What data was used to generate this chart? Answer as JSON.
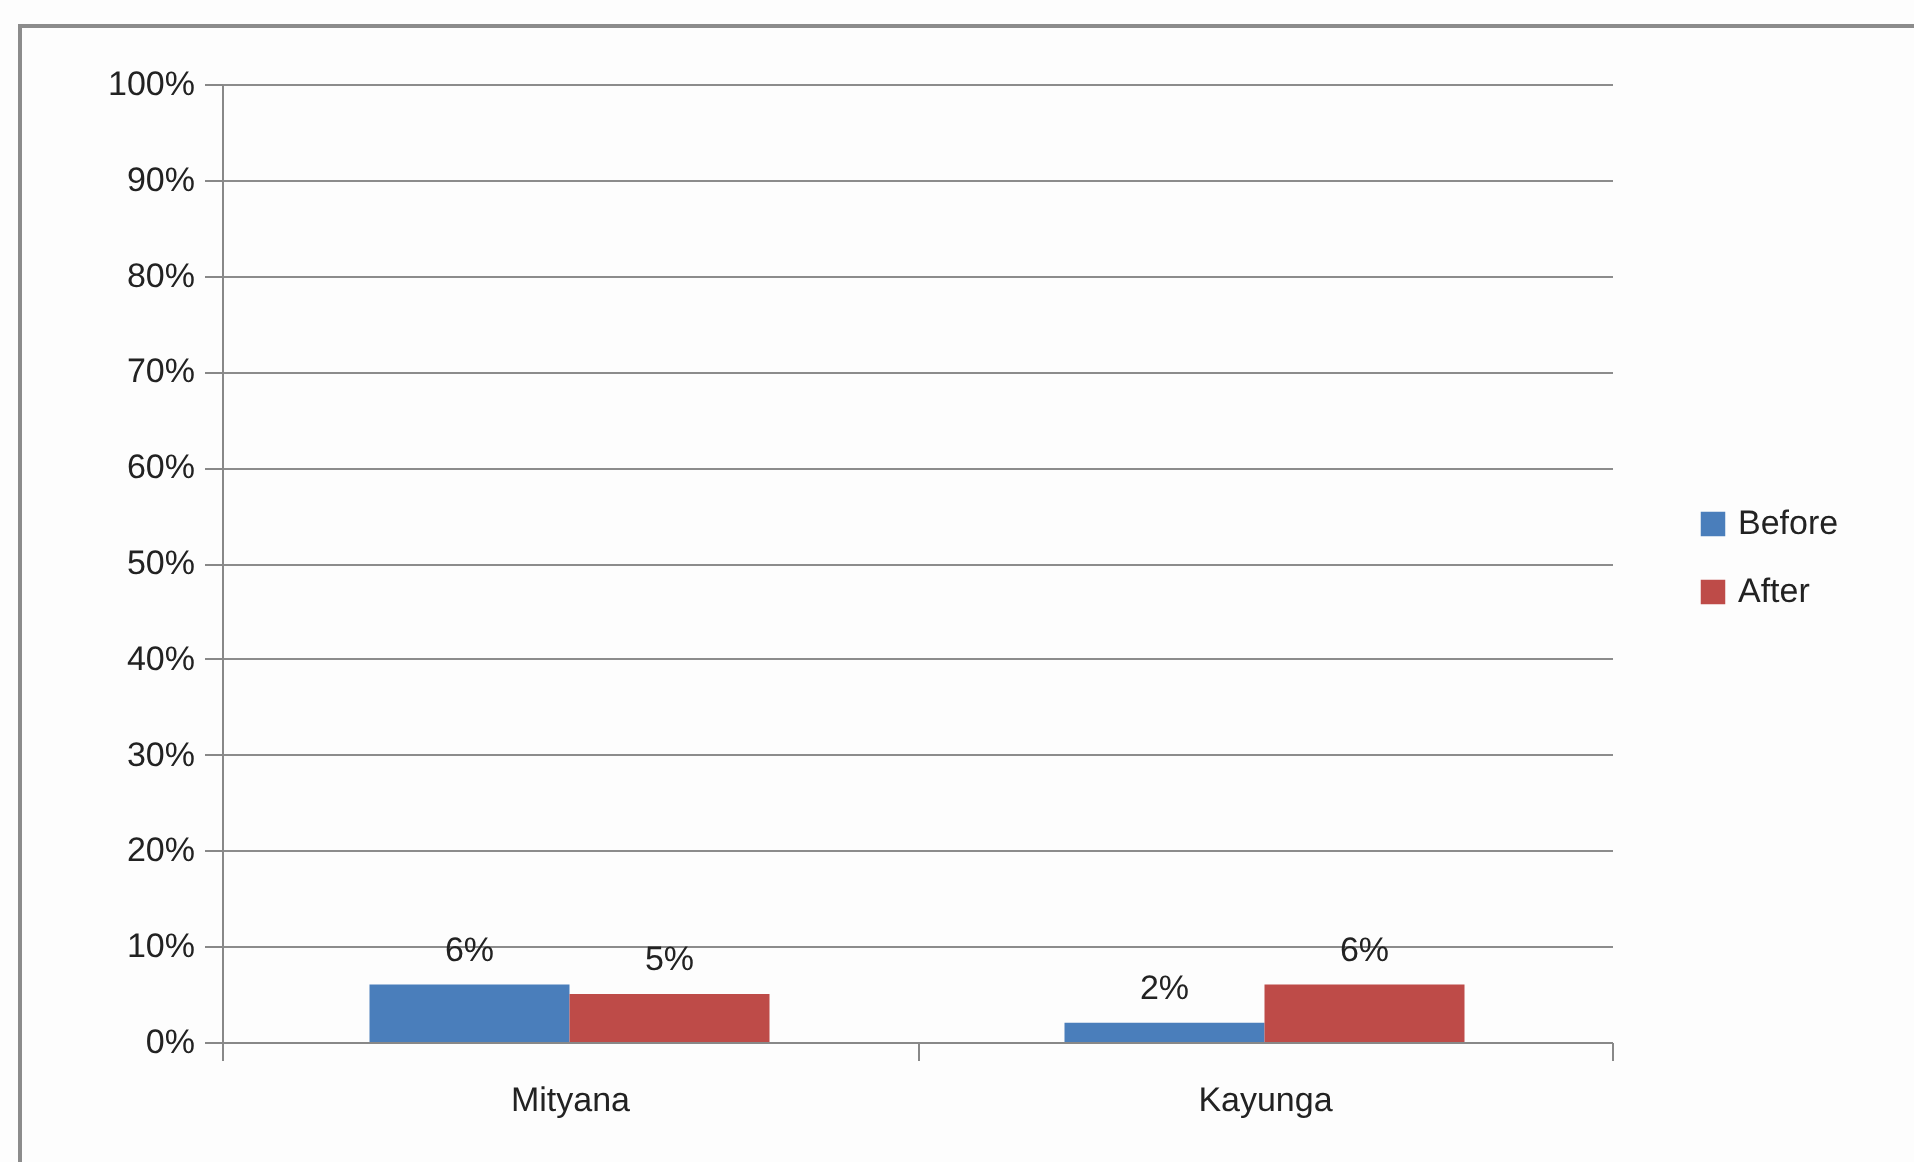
{
  "chart_data": {
    "type": "bar",
    "categories": [
      "Mityana",
      "Kayunga"
    ],
    "series": [
      {
        "name": "Before",
        "color": "#4a7ebb",
        "values": [
          6,
          2
        ],
        "value_labels": [
          "6%",
          "2%"
        ]
      },
      {
        "name": "After",
        "color": "#be4b48",
        "values": [
          5,
          6
        ],
        "value_labels": [
          "5%",
          "6%"
        ]
      }
    ],
    "ylim": [
      0,
      100
    ],
    "yticks": [
      {
        "value": 0,
        "label": "0%"
      },
      {
        "value": 10,
        "label": "10%"
      },
      {
        "value": 20,
        "label": "20%"
      },
      {
        "value": 30,
        "label": "30%"
      },
      {
        "value": 40,
        "label": "40%"
      },
      {
        "value": 50,
        "label": "50%"
      },
      {
        "value": 60,
        "label": "60%"
      },
      {
        "value": 70,
        "label": "70%"
      },
      {
        "value": 80,
        "label": "80%"
      },
      {
        "value": 90,
        "label": "90%"
      },
      {
        "value": 100,
        "label": "100%"
      }
    ],
    "grid": "y",
    "legend": "right"
  }
}
